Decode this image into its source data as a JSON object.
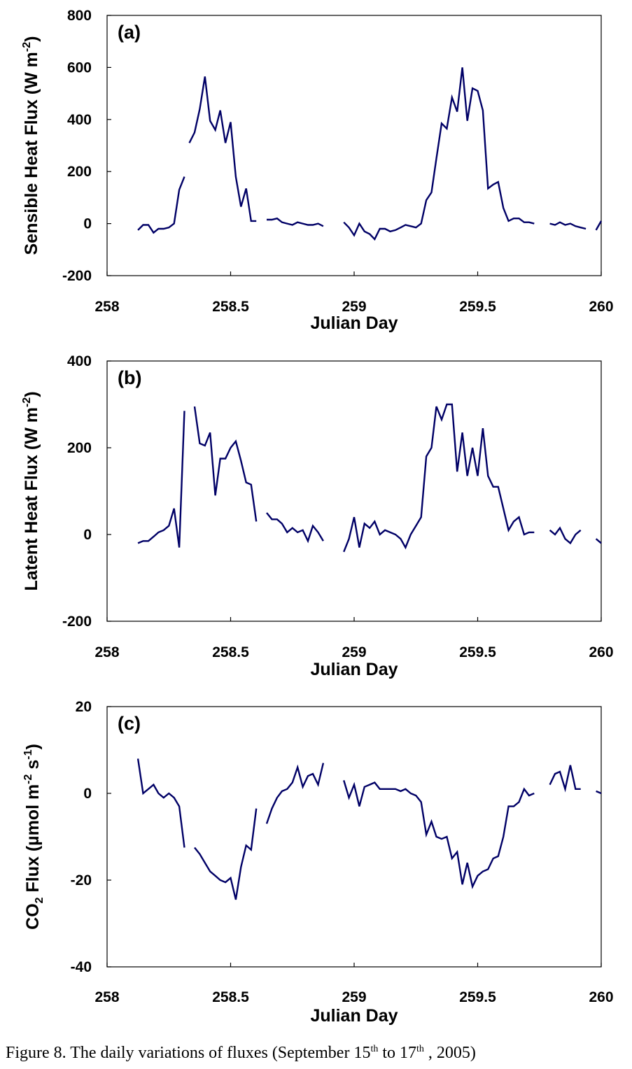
{
  "caption": {
    "prefix": "Figure 8. The daily variations of fluxes (September 15",
    "sup1": "th",
    "middle": " to 17",
    "sup2": "th",
    "suffix": " , 2005)"
  },
  "line_color": "#000066",
  "chart_data": [
    {
      "type": "line",
      "panel_label": "(a)",
      "xlabel": "Julian Day",
      "ylabel": "Sensible Heat Flux (W m",
      "ylabel_sup": "-2",
      "ylabel_end": ")",
      "xlim": [
        258,
        260
      ],
      "ylim": [
        -200,
        800
      ],
      "xticks": [
        258,
        258.5,
        259,
        259.5,
        260
      ],
      "xtick_labels": [
        "258",
        "258.5",
        "259",
        "259.5",
        "260"
      ],
      "yticks": [
        -200,
        0,
        200,
        400,
        600,
        800
      ],
      "ytick_labels": [
        "-200",
        "0",
        "200",
        "400",
        "600",
        "800"
      ],
      "segments": [
        {
          "x": [
            258.125,
            258.146,
            258.167,
            258.188,
            258.208,
            258.229,
            258.25,
            258.271,
            258.292,
            258.313
          ],
          "y": [
            -25,
            -5,
            -5,
            -35,
            -20,
            -20,
            -15,
            0,
            130,
            180
          ]
        },
        {
          "x": [
            258.333,
            258.354,
            258.375,
            258.396,
            258.417,
            258.438,
            258.458,
            258.479,
            258.5,
            258.521,
            258.542,
            258.563,
            258.583,
            258.604
          ],
          "y": [
            310,
            350,
            440,
            565,
            395,
            360,
            435,
            310,
            390,
            180,
            65,
            135,
            10,
            10
          ]
        },
        {
          "x": [
            258.646,
            258.667,
            258.688,
            258.708,
            258.729,
            258.75,
            258.771,
            258.792,
            258.813,
            258.833,
            258.854,
            258.875
          ],
          "y": [
            15,
            15,
            20,
            5,
            0,
            -5,
            5,
            0,
            -5,
            -5,
            0,
            -10
          ]
        },
        {
          "x": [
            258.958,
            258.979,
            259.0,
            259.021,
            259.042,
            259.063,
            259.083,
            259.104,
            259.125,
            259.146,
            259.167,
            259.188,
            259.208,
            259.229,
            259.25,
            259.271,
            259.292,
            259.313,
            259.333,
            259.354,
            259.375,
            259.396,
            259.417,
            259.438,
            259.458,
            259.479,
            259.5,
            259.521,
            259.542,
            259.563,
            259.583,
            259.604,
            259.625,
            259.646,
            259.667,
            259.688,
            259.708,
            259.729
          ],
          "y": [
            5,
            -15,
            -45,
            0,
            -30,
            -40,
            -60,
            -20,
            -20,
            -30,
            -25,
            -15,
            -5,
            -10,
            -15,
            0,
            90,
            120,
            250,
            385,
            365,
            485,
            430,
            600,
            395,
            520,
            510,
            435,
            135,
            150,
            160,
            60,
            10,
            20,
            20,
            5,
            5,
            0
          ]
        },
        {
          "x": [
            259.792,
            259.813,
            259.833,
            259.854,
            259.875,
            259.896,
            259.917,
            259.938
          ],
          "y": [
            0,
            -5,
            5,
            -5,
            0,
            -10,
            -15,
            -20
          ]
        },
        {
          "x": [
            259.979,
            260.0
          ],
          "y": [
            -25,
            10
          ]
        }
      ]
    },
    {
      "type": "line",
      "panel_label": "(b)",
      "xlabel": "Julian Day",
      "ylabel": "Latent Heat Flux (W m",
      "ylabel_sup": "-2",
      "ylabel_end": ")",
      "xlim": [
        258,
        260
      ],
      "ylim": [
        -200,
        400
      ],
      "xticks": [
        258,
        258.5,
        259,
        259.5,
        260
      ],
      "xtick_labels": [
        "258",
        "258.5",
        "259",
        "259.5",
        "260"
      ],
      "yticks": [
        -200,
        0,
        200,
        400
      ],
      "ytick_labels": [
        "-200",
        "0",
        "200",
        "400"
      ],
      "segments": [
        {
          "x": [
            258.125,
            258.146,
            258.167,
            258.188,
            258.208,
            258.229,
            258.25,
            258.271,
            258.292,
            258.313
          ],
          "y": [
            -20,
            -15,
            -15,
            -5,
            5,
            10,
            20,
            60,
            -30,
            285
          ]
        },
        {
          "x": [
            258.354,
            258.375,
            258.396,
            258.417,
            258.438,
            258.458,
            258.479,
            258.5,
            258.521,
            258.542,
            258.563,
            258.583,
            258.604
          ],
          "y": [
            295,
            210,
            205,
            235,
            90,
            175,
            175,
            200,
            215,
            170,
            120,
            115,
            30
          ]
        },
        {
          "x": [
            258.646,
            258.667,
            258.688,
            258.708,
            258.729,
            258.75,
            258.771,
            258.792,
            258.813,
            258.833,
            258.854,
            258.875
          ],
          "y": [
            50,
            35,
            35,
            25,
            5,
            15,
            5,
            10,
            -15,
            20,
            5,
            -15
          ]
        },
        {
          "x": [
            258.958,
            258.979,
            259.0,
            259.021,
            259.042,
            259.063,
            259.083,
            259.104,
            259.125,
            259.146,
            259.167,
            259.188,
            259.208,
            259.229,
            259.25,
            259.271,
            259.292,
            259.313,
            259.333,
            259.354,
            259.375,
            259.396,
            259.417,
            259.438,
            259.458,
            259.479,
            259.5,
            259.521,
            259.542,
            259.563,
            259.583,
            259.604,
            259.625,
            259.646,
            259.667,
            259.688,
            259.708,
            259.729
          ],
          "y": [
            -40,
            -10,
            40,
            -30,
            25,
            15,
            30,
            0,
            10,
            5,
            0,
            -10,
            -30,
            0,
            20,
            40,
            180,
            200,
            295,
            265,
            300,
            300,
            145,
            235,
            135,
            200,
            135,
            245,
            135,
            110,
            110,
            60,
            10,
            30,
            40,
            0,
            5,
            5
          ]
        },
        {
          "x": [
            259.792,
            259.813,
            259.833,
            259.854,
            259.875,
            259.896,
            259.917
          ],
          "y": [
            10,
            0,
            15,
            -10,
            -20,
            0,
            10
          ]
        },
        {
          "x": [
            259.979,
            260.0
          ],
          "y": [
            -10,
            -20
          ]
        }
      ]
    },
    {
      "type": "line",
      "panel_label": "(c)",
      "xlabel": "Julian Day",
      "ylabel": "CO",
      "ylabel_sub": "2",
      "ylabel_mid": " Flux (µmol m",
      "ylabel_sup": "-2",
      "ylabel_mid2": " s",
      "ylabel_sup2": "-1",
      "ylabel_end": ")",
      "xlim": [
        258,
        260
      ],
      "ylim": [
        -40,
        20
      ],
      "xticks": [
        258,
        258.5,
        259,
        259.5,
        260
      ],
      "xtick_labels": [
        "258",
        "258.5",
        "259",
        "259.5",
        "260"
      ],
      "yticks": [
        -40,
        -20,
        0,
        20
      ],
      "ytick_labels": [
        "-40",
        "-20",
        "0",
        "20"
      ],
      "segments": [
        {
          "x": [
            258.125,
            258.146,
            258.167,
            258.188,
            258.208,
            258.229,
            258.25,
            258.271,
            258.292,
            258.313
          ],
          "y": [
            8,
            0,
            1,
            2,
            0,
            -1,
            0,
            -1,
            -3,
            -12.5
          ]
        },
        {
          "x": [
            258.354,
            258.375,
            258.396,
            258.417,
            258.438,
            258.458,
            258.479,
            258.5,
            258.521,
            258.542,
            258.563,
            258.583,
            258.604
          ],
          "y": [
            -12.5,
            -14,
            -16,
            -18,
            -19,
            -20,
            -20.5,
            -19.5,
            -24.5,
            -17,
            -12,
            -13,
            -3.5
          ]
        },
        {
          "x": [
            258.646,
            258.667,
            258.688,
            258.708,
            258.729,
            258.75,
            258.771,
            258.792,
            258.813,
            258.833,
            258.854,
            258.875
          ],
          "y": [
            -7,
            -3.5,
            -1,
            0.5,
            1,
            2.5,
            6,
            1.5,
            4,
            4.5,
            2,
            7
          ]
        },
        {
          "x": [
            258.958,
            258.979,
            259.0,
            259.021,
            259.042,
            259.063,
            259.083,
            259.104,
            259.125,
            259.146,
            259.167,
            259.188,
            259.208,
            259.229,
            259.25,
            259.271,
            259.292,
            259.313,
            259.333,
            259.354,
            259.375,
            259.396,
            259.417,
            259.438,
            259.458,
            259.479,
            259.5,
            259.521,
            259.542,
            259.563,
            259.583,
            259.604,
            259.625,
            259.646,
            259.667,
            259.688,
            259.708,
            259.729
          ],
          "y": [
            3,
            -1,
            2,
            -3,
            1.5,
            2,
            2.5,
            1,
            1,
            1,
            1,
            0.5,
            1,
            0,
            -0.5,
            -2,
            -9.5,
            -6.5,
            -10,
            -10.5,
            -10,
            -15,
            -13.5,
            -21,
            -16,
            -21.5,
            -19,
            -18,
            -17.5,
            -15,
            -14.5,
            -10,
            -3,
            -3,
            -2,
            1,
            -0.5,
            0
          ]
        },
        {
          "x": [
            259.792,
            259.813,
            259.833,
            259.854,
            259.875,
            259.896,
            259.917
          ],
          "y": [
            2,
            4.5,
            5,
            1,
            6.5,
            1,
            1
          ]
        },
        {
          "x": [
            259.979,
            260.0
          ],
          "y": [
            0.5,
            0
          ]
        }
      ]
    }
  ]
}
